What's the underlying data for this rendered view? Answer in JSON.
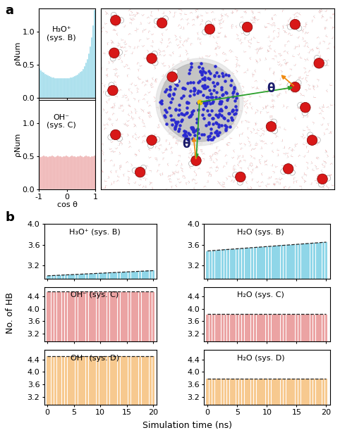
{
  "panel_labels": [
    "a",
    "b"
  ],
  "snapshot": {
    "angle_labels": [
      "θ",
      "θ"
    ]
  },
  "shared_labels": {
    "y": "No. of HB",
    "x": "Simulation time (ns)"
  },
  "chart_data": [
    {
      "type": "histogram",
      "title": "H₃O⁺\n(sys. B)",
      "ylabel": "ρNum",
      "color": "#8fd6e8",
      "bins": [
        -1.0,
        -0.95,
        -0.9,
        -0.85,
        -0.8,
        -0.75,
        -0.7,
        -0.65,
        -0.6,
        -0.55,
        -0.5,
        -0.45,
        -0.4,
        -0.35,
        -0.3,
        -0.25,
        -0.2,
        -0.15,
        -0.1,
        -0.05,
        0.0,
        0.05,
        0.1,
        0.15,
        0.2,
        0.25,
        0.3,
        0.35,
        0.4,
        0.45,
        0.5,
        0.55,
        0.6,
        0.65,
        0.7,
        0.75,
        0.8,
        0.85,
        0.9,
        0.95,
        1.0
      ],
      "counts": [
        0.45,
        0.42,
        0.4,
        0.38,
        0.36,
        0.35,
        0.34,
        0.33,
        0.32,
        0.31,
        0.31,
        0.3,
        0.3,
        0.3,
        0.3,
        0.3,
        0.3,
        0.3,
        0.3,
        0.3,
        0.3,
        0.3,
        0.31,
        0.31,
        0.32,
        0.33,
        0.34,
        0.35,
        0.37,
        0.39,
        0.41,
        0.44,
        0.48,
        0.53,
        0.59,
        0.67,
        0.78,
        0.92,
        1.1,
        1.33
      ],
      "xlim": [
        -1,
        1
      ],
      "xticks": [
        -1,
        0,
        1
      ],
      "ylim": [
        0,
        1.35
      ],
      "yticks": [
        0.0,
        0.5,
        1.0
      ],
      "tick_labels": "y"
    },
    {
      "type": "histogram",
      "title": "OH⁻\n(sys. C)",
      "ylabel": "ρNum",
      "xlabel": "cos θ",
      "color": "#eba3a3",
      "bins": [
        -1.0,
        -0.95,
        -0.9,
        -0.85,
        -0.8,
        -0.75,
        -0.7,
        -0.65,
        -0.6,
        -0.55,
        -0.5,
        -0.45,
        -0.4,
        -0.35,
        -0.3,
        -0.25,
        -0.2,
        -0.15,
        -0.1,
        -0.05,
        0.0,
        0.05,
        0.1,
        0.15,
        0.2,
        0.25,
        0.3,
        0.35,
        0.4,
        0.45,
        0.5,
        0.55,
        0.6,
        0.65,
        0.7,
        0.75,
        0.8,
        0.85,
        0.9,
        0.95,
        1.0
      ],
      "counts": [
        0.5,
        0.49,
        0.5,
        0.51,
        0.5,
        0.5,
        0.49,
        0.5,
        0.5,
        0.51,
        0.5,
        0.49,
        0.5,
        0.51,
        0.5,
        0.5,
        0.49,
        0.5,
        0.5,
        0.51,
        0.5,
        0.49,
        0.5,
        0.51,
        0.5,
        0.5,
        0.49,
        0.5,
        0.5,
        0.51,
        0.5,
        0.49,
        0.5,
        0.51,
        0.5,
        0.5,
        0.49,
        0.5,
        0.5,
        0.51
      ],
      "xlim": [
        -1,
        1
      ],
      "xticks": [
        -1,
        0,
        1
      ],
      "ylim": [
        0,
        1.35
      ],
      "yticks": [
        0.0,
        0.5,
        1.0
      ]
    },
    {
      "type": "bar",
      "title": "H₃O⁺ (sys. B)",
      "x": [
        0,
        0.5,
        1,
        1.5,
        2,
        2.5,
        3,
        3.5,
        4,
        4.5,
        5,
        5.5,
        6,
        6.5,
        7,
        7.5,
        8,
        8.5,
        9,
        9.5,
        10,
        10.5,
        11,
        11.5,
        12,
        12.5,
        13,
        13.5,
        14,
        14.5,
        15,
        15.5,
        16,
        16.5,
        17,
        17.5,
        18,
        18.5,
        19,
        19.5,
        20
      ],
      "series": [
        {
          "type": "bar",
          "color": "#8fd6e8",
          "values": [
            3.0,
            3.0,
            3.01,
            3.01,
            3.01,
            3.01,
            3.02,
            3.02,
            3.02,
            3.02,
            3.03,
            3.03,
            3.03,
            3.03,
            3.04,
            3.04,
            3.04,
            3.04,
            3.05,
            3.05,
            3.05,
            3.05,
            3.06,
            3.06,
            3.06,
            3.06,
            3.07,
            3.07,
            3.07,
            3.07,
            3.08,
            3.08,
            3.08,
            3.08,
            3.09,
            3.09,
            3.09,
            3.09,
            3.1,
            3.1,
            3.1
          ]
        },
        {
          "type": "line",
          "line_style": "dashed",
          "color": "#222222",
          "x": [
            0,
            20
          ],
          "values": [
            3.0,
            3.1
          ]
        }
      ],
      "xlim": [
        -0.6,
        20.6
      ],
      "xticks": [
        0,
        5,
        10,
        15,
        20
      ],
      "ylim": [
        2.95,
        4.0
      ],
      "yticks": [
        3.2,
        3.6,
        4.0
      ],
      "tick_labels": "y"
    },
    {
      "type": "bar",
      "title": "H₂O (sys. B)",
      "x": [
        0,
        0.5,
        1,
        1.5,
        2,
        2.5,
        3,
        3.5,
        4,
        4.5,
        5,
        5.5,
        6,
        6.5,
        7,
        7.5,
        8,
        8.5,
        9,
        9.5,
        10,
        10.5,
        11,
        11.5,
        12,
        12.5,
        13,
        13.5,
        14,
        14.5,
        15,
        15.5,
        16,
        16.5,
        17,
        17.5,
        18,
        18.5,
        19,
        19.5,
        20
      ],
      "series": [
        {
          "type": "bar",
          "color": "#8fd6e8",
          "values": [
            3.48,
            3.48,
            3.49,
            3.49,
            3.5,
            3.5,
            3.51,
            3.51,
            3.51,
            3.52,
            3.52,
            3.53,
            3.53,
            3.54,
            3.54,
            3.54,
            3.55,
            3.55,
            3.56,
            3.56,
            3.57,
            3.57,
            3.57,
            3.58,
            3.58,
            3.59,
            3.59,
            3.59,
            3.6,
            3.6,
            3.61,
            3.61,
            3.62,
            3.62,
            3.62,
            3.63,
            3.63,
            3.64,
            3.64,
            3.65,
            3.65
          ]
        },
        {
          "type": "line",
          "line_style": "dashed",
          "color": "#222222",
          "x": [
            0,
            20
          ],
          "values": [
            3.48,
            3.65
          ]
        }
      ],
      "xlim": [
        -0.6,
        20.6
      ],
      "xticks": [
        0,
        5,
        10,
        15,
        20
      ],
      "ylim": [
        2.95,
        4.0
      ],
      "yticks": [
        3.2,
        3.6,
        4.0
      ],
      "tick_labels": "y"
    },
    {
      "type": "bar",
      "title": "OH⁻ (sys. C)",
      "x": [
        0,
        0.5,
        1,
        1.5,
        2,
        2.5,
        3,
        3.5,
        4,
        4.5,
        5,
        5.5,
        6,
        6.5,
        7,
        7.5,
        8,
        8.5,
        9,
        9.5,
        10,
        10.5,
        11,
        11.5,
        12,
        12.5,
        13,
        13.5,
        14,
        14.5,
        15,
        15.5,
        16,
        16.5,
        17,
        17.5,
        18,
        18.5,
        19,
        19.5,
        20
      ],
      "series": [
        {
          "type": "bar",
          "color": "#eba3a3",
          "values": [
            4.55,
            4.55,
            4.54,
            4.55,
            4.56,
            4.55,
            4.55,
            4.54,
            4.55,
            4.55,
            4.55,
            4.55,
            4.54,
            4.55,
            4.56,
            4.55,
            4.55,
            4.54,
            4.55,
            4.55,
            4.55,
            4.55,
            4.54,
            4.55,
            4.56,
            4.55,
            4.55,
            4.54,
            4.55,
            4.55,
            4.55,
            4.55,
            4.54,
            4.55,
            4.56,
            4.55,
            4.55,
            4.54,
            4.55,
            4.55,
            4.55
          ]
        },
        {
          "type": "line",
          "line_style": "dashed",
          "color": "#222222",
          "x": [
            0,
            20
          ],
          "values": [
            4.56,
            4.56
          ]
        }
      ],
      "xlim": [
        -0.6,
        20.6
      ],
      "xticks": [
        0,
        5,
        10,
        15,
        20
      ],
      "ylim": [
        2.95,
        4.7
      ],
      "yticks": [
        3.2,
        3.6,
        4.0,
        4.4
      ],
      "tick_labels": "y"
    },
    {
      "type": "bar",
      "title": "H₂O (sys. C)",
      "x": [
        0,
        0.5,
        1,
        1.5,
        2,
        2.5,
        3,
        3.5,
        4,
        4.5,
        5,
        5.5,
        6,
        6.5,
        7,
        7.5,
        8,
        8.5,
        9,
        9.5,
        10,
        10.5,
        11,
        11.5,
        12,
        12.5,
        13,
        13.5,
        14,
        14.5,
        15,
        15.5,
        16,
        16.5,
        17,
        17.5,
        18,
        18.5,
        19,
        19.5,
        20
      ],
      "series": [
        {
          "type": "bar",
          "color": "#eba3a3",
          "values": [
            3.82,
            3.82,
            3.81,
            3.82,
            3.83,
            3.82,
            3.82,
            3.81,
            3.82,
            3.82,
            3.82,
            3.82,
            3.81,
            3.82,
            3.83,
            3.82,
            3.82,
            3.81,
            3.82,
            3.82,
            3.82,
            3.82,
            3.81,
            3.82,
            3.83,
            3.82,
            3.82,
            3.81,
            3.82,
            3.82,
            3.82,
            3.82,
            3.81,
            3.82,
            3.83,
            3.82,
            3.82,
            3.81,
            3.82,
            3.82,
            3.82
          ]
        },
        {
          "type": "line",
          "line_style": "dashed",
          "color": "#222222",
          "x": [
            0,
            20
          ],
          "values": [
            3.83,
            3.83
          ]
        }
      ],
      "xlim": [
        -0.6,
        20.6
      ],
      "xticks": [
        0,
        5,
        10,
        15,
        20
      ],
      "ylim": [
        2.95,
        4.7
      ],
      "yticks": [
        3.2,
        3.6,
        4.0,
        4.4
      ],
      "tick_labels": "y"
    },
    {
      "type": "bar",
      "title": "OH⁻ (sys. D)",
      "x": [
        0,
        0.5,
        1,
        1.5,
        2,
        2.5,
        3,
        3.5,
        4,
        4.5,
        5,
        5.5,
        6,
        6.5,
        7,
        7.5,
        8,
        8.5,
        9,
        9.5,
        10,
        10.5,
        11,
        11.5,
        12,
        12.5,
        13,
        13.5,
        14,
        14.5,
        15,
        15.5,
        16,
        16.5,
        17,
        17.5,
        18,
        18.5,
        19,
        19.5,
        20
      ],
      "series": [
        {
          "type": "bar",
          "color": "#f7c98f",
          "values": [
            4.5,
            4.5,
            4.49,
            4.5,
            4.51,
            4.5,
            4.5,
            4.49,
            4.5,
            4.5,
            4.5,
            4.5,
            4.49,
            4.5,
            4.51,
            4.5,
            4.5,
            4.49,
            4.5,
            4.5,
            4.5,
            4.5,
            4.49,
            4.5,
            4.51,
            4.5,
            4.5,
            4.49,
            4.5,
            4.5,
            4.5,
            4.5,
            4.49,
            4.5,
            4.51,
            4.5,
            4.5,
            4.49,
            4.5,
            4.5,
            4.5
          ]
        },
        {
          "type": "line",
          "line_style": "dashed",
          "color": "#222222",
          "x": [
            0,
            20
          ],
          "values": [
            4.51,
            4.51
          ]
        }
      ],
      "xlim": [
        -0.6,
        20.6
      ],
      "xticks": [
        0,
        5,
        10,
        15,
        20
      ],
      "ylim": [
        2.95,
        4.7
      ],
      "yticks": [
        3.2,
        3.6,
        4.0,
        4.4
      ]
    },
    {
      "type": "bar",
      "title": "H₂O (sys. D)",
      "x": [
        0,
        0.5,
        1,
        1.5,
        2,
        2.5,
        3,
        3.5,
        4,
        4.5,
        5,
        5.5,
        6,
        6.5,
        7,
        7.5,
        8,
        8.5,
        9,
        9.5,
        10,
        10.5,
        11,
        11.5,
        12,
        12.5,
        13,
        13.5,
        14,
        14.5,
        15,
        15.5,
        16,
        16.5,
        17,
        17.5,
        18,
        18.5,
        19,
        19.5,
        20
      ],
      "series": [
        {
          "type": "bar",
          "color": "#f7c98f",
          "values": [
            3.78,
            3.78,
            3.77,
            3.78,
            3.79,
            3.78,
            3.78,
            3.77,
            3.78,
            3.78,
            3.78,
            3.78,
            3.77,
            3.78,
            3.79,
            3.78,
            3.78,
            3.77,
            3.78,
            3.78,
            3.78,
            3.78,
            3.77,
            3.78,
            3.79,
            3.78,
            3.78,
            3.77,
            3.78,
            3.78,
            3.78,
            3.78,
            3.77,
            3.78,
            3.79,
            3.78,
            3.78,
            3.77,
            3.78,
            3.78,
            3.78
          ]
        },
        {
          "type": "line",
          "line_style": "dashed",
          "color": "#222222",
          "x": [
            0,
            20
          ],
          "values": [
            3.79,
            3.79
          ]
        }
      ],
      "xlim": [
        -0.6,
        20.6
      ],
      "xticks": [
        0,
        5,
        10,
        15,
        20
      ],
      "ylim": [
        2.95,
        4.7
      ],
      "yticks": [
        3.2,
        3.6,
        4.0,
        4.4
      ]
    }
  ]
}
